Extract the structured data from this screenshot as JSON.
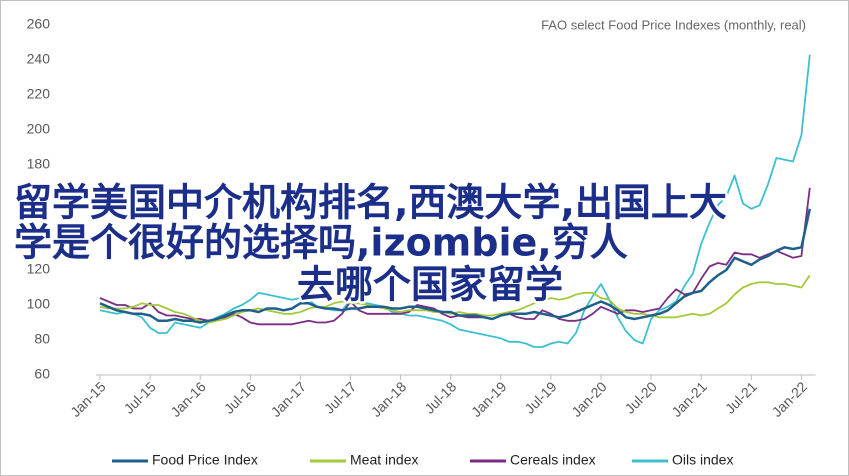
{
  "chart_data": {
    "type": "line",
    "title": "FAO select Food Price Indexes (monthly, real)",
    "categories": [
      "Jan-15",
      null,
      null,
      null,
      null,
      null,
      "Jul-15",
      null,
      null,
      null,
      null,
      null,
      "Jan-16",
      null,
      null,
      null,
      null,
      null,
      "Jul-16",
      null,
      null,
      null,
      null,
      null,
      "Jan-17",
      null,
      null,
      null,
      null,
      null,
      "Jul-17",
      null,
      null,
      null,
      null,
      null,
      "Jan-18",
      null,
      null,
      null,
      null,
      null,
      "Jul-18",
      null,
      null,
      null,
      null,
      null,
      "Jan-19",
      null,
      null,
      null,
      null,
      null,
      "Jul-19",
      null,
      null,
      null,
      null,
      null,
      "Jan-20",
      null,
      null,
      null,
      null,
      null,
      "Jul-20",
      null,
      null,
      null,
      null,
      null,
      "Jan-21",
      null,
      null,
      null,
      null,
      null,
      "Jul-21",
      null,
      null,
      null,
      null,
      null,
      "Jan-22",
      null
    ],
    "series": [
      {
        "name": "Food Price Index",
        "color": "#1f5f8b",
        "values": [
          101,
          99,
          97,
          96,
          95,
          95,
          94,
          91,
          91,
          92,
          91,
          91,
          90,
          91,
          92,
          94,
          96,
          97,
          97,
          96,
          98,
          98,
          97,
          98,
          101,
          101,
          99,
          98,
          98,
          97,
          98,
          98,
          99,
          99,
          99,
          98,
          98,
          99,
          99,
          98,
          97,
          96,
          96,
          94,
          94,
          94,
          93,
          92,
          94,
          95,
          95,
          95,
          96,
          95,
          94,
          93,
          94,
          96,
          98,
          100,
          102,
          100,
          97,
          93,
          92,
          93,
          94,
          95,
          97,
          101,
          105,
          107,
          108,
          113,
          117,
          120,
          127,
          125,
          123,
          126,
          128,
          131,
          133,
          132,
          133,
          155
        ]
      },
      {
        "name": "Meat index",
        "color": "#a5c93b",
        "values": [
          99,
          98,
          98,
          98,
          99,
          101,
          100,
          100,
          98,
          96,
          95,
          93,
          91,
          90,
          91,
          92,
          94,
          96,
          97,
          98,
          97,
          96,
          95,
          95,
          96,
          98,
          99,
          99,
          101,
          102,
          101,
          101,
          100,
          99,
          98,
          97,
          96,
          97,
          97,
          97,
          96,
          96,
          95,
          96,
          95,
          95,
          94,
          94,
          95,
          96,
          97,
          99,
          101,
          102,
          104,
          103,
          104,
          106,
          107,
          107,
          104,
          103,
          98,
          96,
          95,
          95,
          94,
          93,
          93,
          93,
          94,
          95,
          94,
          95,
          98,
          101,
          106,
          110,
          112,
          113,
          113,
          112,
          112,
          111,
          110,
          117
        ]
      },
      {
        "name": "Cereals index",
        "color": "#7b2c83",
        "values": [
          104,
          102,
          100,
          100,
          98,
          98,
          101,
          96,
          94,
          94,
          93,
          92,
          92,
          91,
          92,
          93,
          95,
          93,
          90,
          89,
          89,
          89,
          89,
          89,
          90,
          91,
          90,
          90,
          91,
          95,
          102,
          97,
          95,
          95,
          95,
          95,
          95,
          96,
          100,
          99,
          98,
          95,
          93,
          94,
          93,
          93,
          93,
          92,
          94,
          95,
          93,
          92,
          92,
          97,
          95,
          92,
          91,
          91,
          92,
          95,
          99,
          97,
          95,
          97,
          97,
          96,
          97,
          98,
          104,
          109,
          106,
          107,
          115,
          122,
          124,
          123,
          130,
          129,
          129,
          127,
          129,
          131,
          129,
          127,
          128,
          167
        ]
      },
      {
        "name": "Oils index",
        "color": "#3cc0cf",
        "values": [
          97,
          96,
          95,
          96,
          95,
          93,
          87,
          84,
          84,
          90,
          89,
          88,
          87,
          90,
          93,
          95,
          98,
          100,
          103,
          107,
          106,
          105,
          104,
          103,
          104,
          103,
          99,
          98,
          97,
          97,
          103,
          101,
          101,
          100,
          99,
          96,
          95,
          94,
          94,
          93,
          92,
          91,
          89,
          86,
          85,
          84,
          83,
          82,
          81,
          79,
          79,
          78,
          76,
          76,
          78,
          79,
          78,
          84,
          97,
          105,
          112,
          103,
          93,
          85,
          80,
          78,
          92,
          97,
          99,
          102,
          111,
          118,
          135,
          147,
          157,
          162,
          174,
          158,
          155,
          157,
          169,
          184,
          183,
          182,
          197,
          243
        ]
      }
    ],
    "ylim": [
      60,
      260
    ],
    "yticks": [
      60,
      80,
      100,
      120,
      140,
      160,
      180,
      200,
      220,
      240,
      260
    ],
    "annotations": [
      "留学美国中介机构排名,西澳大学,出国上大",
      "学是个很好的选择吗,izombie,穷人",
      "去哪个国家留学"
    ]
  }
}
